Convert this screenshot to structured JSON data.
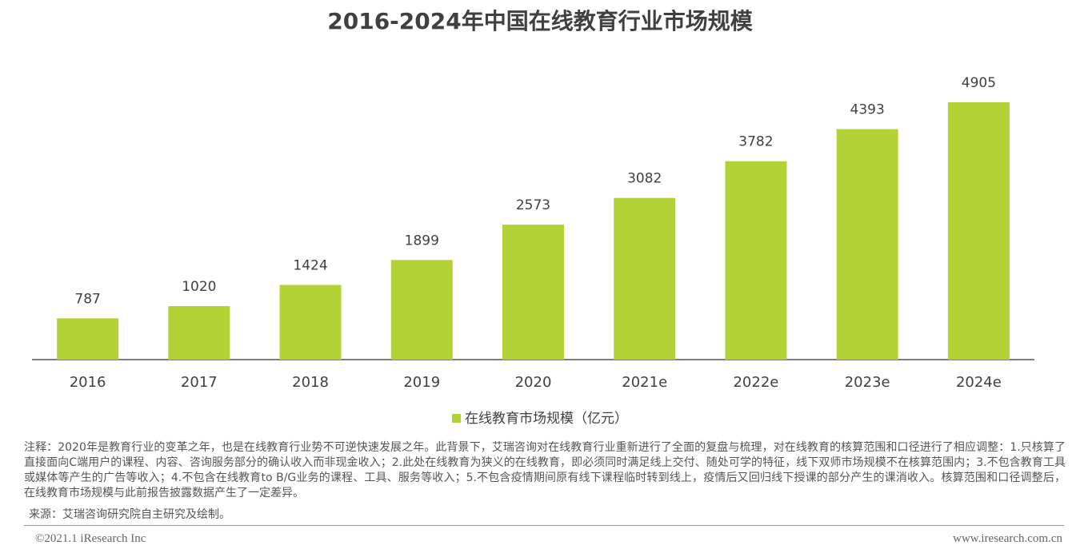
{
  "chart_data": {
    "type": "bar",
    "title": "2016-2024年中国在线教育行业市场规模",
    "categories": [
      "2016",
      "2017",
      "2018",
      "2019",
      "2020",
      "2021e",
      "2022e",
      "2023e",
      "2024e"
    ],
    "series": [
      {
        "name": "在线教育市场规模（亿元）",
        "color": "#b2d235",
        "values": [
          787,
          1020,
          1424,
          1899,
          2573,
          3082,
          3782,
          4393,
          4905
        ]
      }
    ]
  },
  "note": "注释：2020年是教育行业的变革之年，也是在线教育行业势不可逆快速发展之年。此背景下，艾瑞咨询对在线教育行业重新进行了全面的复盘与梳理，对在线教育的核算范围和口径进行了相应调整：1.只核算了直接面向C端用户的课程、内容、咨询服务部分的确认收入而非现金收入；2.此处在线教育为狭义的在线教育，即必须同时满足线上交付、随处可学的特征，线下双师市场规模不在核算范围内；3.不包含教育工具或媒体等产生的广告等收入；4.不包含在线教育to B/G业务的课程、工具、服务等收入；5.不包含疫情期间原有线下课程临时转到线上，疫情后又回归线下授课的部分产生的课消收入。核算范围和口径调整后，在线教育市场规模与此前报告披露数据产生了一定差异。",
  "source": "来源：艾瑞咨询研究院自主研究及绘制。",
  "copyright": "©2021.1 iResearch Inc",
  "website": "www.iresearch.com.cn"
}
